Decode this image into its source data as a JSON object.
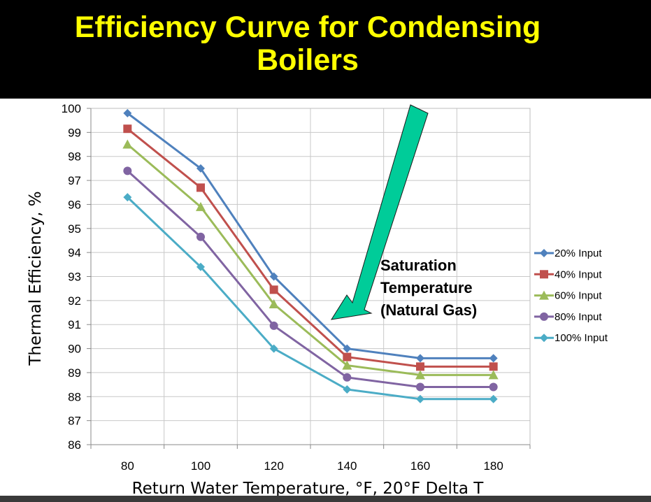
{
  "slide": {
    "title_line1": "Efficiency Curve for Condensing",
    "title_line2": "Boilers"
  },
  "chart_data": {
    "type": "line",
    "x": [
      80,
      100,
      120,
      140,
      160,
      180
    ],
    "xlabel": "Return Water Temperature, °F, 20°F Delta T",
    "ylabel": "Thermal Efficiency, %",
    "xlim": [
      70,
      190
    ],
    "ylim": [
      86,
      100
    ],
    "x_ticks": [
      "80",
      "100",
      "120",
      "140",
      "160",
      "180"
    ],
    "y_ticks": [
      "86",
      "87",
      "88",
      "89",
      "90",
      "91",
      "92",
      "93",
      "94",
      "95",
      "96",
      "97",
      "98",
      "99",
      "100"
    ],
    "grid": true,
    "legend": "right",
    "series": [
      {
        "name": "20% Input",
        "color": "#4f81bd",
        "marker": "diamond",
        "values": [
          99.8,
          97.5,
          93.0,
          90.0,
          89.6,
          89.6
        ]
      },
      {
        "name": "40% Input",
        "color": "#c0504d",
        "marker": "square",
        "values": [
          99.15,
          96.7,
          92.45,
          89.65,
          89.25,
          89.25
        ]
      },
      {
        "name": "60% Input",
        "color": "#9bbb59",
        "marker": "triangle",
        "values": [
          98.5,
          95.9,
          91.85,
          89.3,
          88.9,
          88.9
        ]
      },
      {
        "name": "80% Input",
        "color": "#8064a2",
        "marker": "circle",
        "values": [
          97.4,
          94.65,
          90.95,
          88.8,
          88.4,
          88.4
        ]
      },
      {
        "name": "100% Input",
        "color": "#4bacc6",
        "marker": "diamond",
        "values": [
          96.3,
          93.4,
          90.0,
          88.3,
          87.9,
          87.9
        ]
      }
    ],
    "annotation": {
      "lines": [
        "Saturation",
        "Temperature",
        "(Natural Gas)"
      ],
      "arrow_color": "#00cc99"
    }
  }
}
